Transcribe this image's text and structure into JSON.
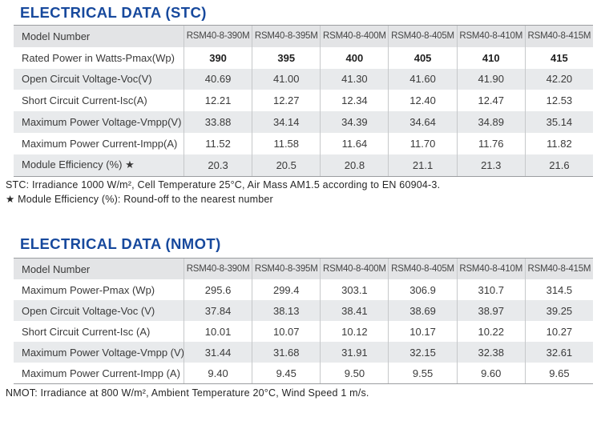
{
  "colors": {
    "title": "#17499D",
    "header_row_bg": "#e3e4e6",
    "stripe_row_bg": "#e8eaec",
    "border_dark": "#9b9da0",
    "border_light": "#c6c8ca",
    "text": "#3a3a3a"
  },
  "stc_section": {
    "title": "ELECTRICAL DATA (STC)",
    "table": {
      "header_label": "Model Number",
      "columns": [
        "RSM40-8-390M",
        "RSM40-8-395M",
        "RSM40-8-400M",
        "RSM40-8-405M",
        "RSM40-8-410M",
        "RSM40-8-415M"
      ],
      "rows": [
        {
          "label": "Rated Power in Watts-Pmax(Wp)",
          "bold": true,
          "values": [
            "390",
            "395",
            "400",
            "405",
            "410",
            "415"
          ]
        },
        {
          "label": "Open Circuit Voltage-Voc(V)",
          "values": [
            "40.69",
            "41.00",
            "41.30",
            "41.60",
            "41.90",
            "42.20"
          ]
        },
        {
          "label": "Short Circuit Current-Isc(A)",
          "values": [
            "12.21",
            "12.27",
            "12.34",
            "12.40",
            "12.47",
            "12.53"
          ]
        },
        {
          "label": "Maximum Power Voltage-Vmpp(V)",
          "values": [
            "33.88",
            "34.14",
            "34.39",
            "34.64",
            "34.89",
            "35.14"
          ]
        },
        {
          "label": "Maximum Power Current-Impp(A)",
          "values": [
            "11.52",
            "11.58",
            "11.64",
            "11.70",
            "11.76",
            "11.82"
          ]
        },
        {
          "label": "Module Efficiency (%) ★",
          "values": [
            "20.3",
            "20.5",
            "20.8",
            "21.1",
            "21.3",
            "21.6"
          ]
        }
      ]
    },
    "footnotes": [
      "STC: Irradiance 1000 W/m², Cell Temperature 25°C, Air Mass AM1.5 according to EN 60904-3.",
      "★ Module Efficiency (%): Round-off to the nearest number"
    ]
  },
  "nmot_section": {
    "title": "ELECTRICAL DATA (NMOT)",
    "table": {
      "header_label": "Model Number",
      "columns": [
        "RSM40-8-390M",
        "RSM40-8-395M",
        "RSM40-8-400M",
        "RSM40-8-405M",
        "RSM40-8-410M",
        "RSM40-8-415M"
      ],
      "rows": [
        {
          "label": "Maximum Power-Pmax (Wp)",
          "values": [
            "295.6",
            "299.4",
            "303.1",
            "306.9",
            "310.7",
            "314.5"
          ]
        },
        {
          "label": "Open Circuit Voltage-Voc (V)",
          "values": [
            "37.84",
            "38.13",
            "38.41",
            "38.69",
            "38.97",
            "39.25"
          ]
        },
        {
          "label": "Short Circuit Current-Isc (A)",
          "values": [
            "10.01",
            "10.07",
            "10.12",
            "10.17",
            "10.22",
            "10.27"
          ]
        },
        {
          "label": "Maximum Power Voltage-Vmpp (V)",
          "values": [
            "31.44",
            "31.68",
            "31.91",
            "32.15",
            "32.38",
            "32.61"
          ]
        },
        {
          "label": "Maximum Power Current-Impp (A)",
          "values": [
            "9.40",
            "9.45",
            "9.50",
            "9.55",
            "9.60",
            "9.65"
          ]
        }
      ]
    },
    "footnotes": [
      "NMOT: Irradiance at 800 W/m², Ambient Temperature 20°C, Wind Speed 1 m/s."
    ]
  }
}
